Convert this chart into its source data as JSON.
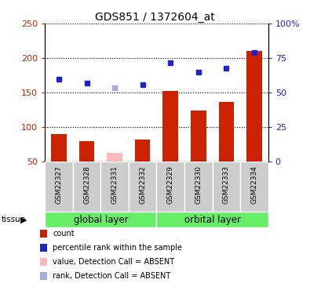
{
  "title": "GDS851 / 1372604_at",
  "samples": [
    "GSM22327",
    "GSM22328",
    "GSM22331",
    "GSM22332",
    "GSM22329",
    "GSM22330",
    "GSM22333",
    "GSM22334"
  ],
  "bar_values": [
    90,
    80,
    63,
    82,
    152,
    124,
    137,
    210
  ],
  "bar_absent": [
    false,
    false,
    true,
    false,
    false,
    false,
    false,
    false
  ],
  "rank_values": [
    170,
    164,
    157,
    161,
    193,
    180,
    185,
    208
  ],
  "rank_absent": [
    false,
    false,
    true,
    false,
    false,
    false,
    false,
    false
  ],
  "groups": [
    {
      "label": "global layer",
      "start": 0,
      "end": 3,
      "color": "#66ee66"
    },
    {
      "label": "orbital layer",
      "start": 4,
      "end": 7,
      "color": "#66ee66"
    }
  ],
  "group_bg_color": "#cccccc",
  "ylim_left": [
    50,
    250
  ],
  "ylim_right": [
    0,
    100
  ],
  "yticks_left": [
    50,
    100,
    150,
    200,
    250
  ],
  "yticks_right": [
    0,
    25,
    50,
    75,
    100
  ],
  "ytick_labels_right": [
    "0",
    "25",
    "50",
    "75",
    "100%"
  ],
  "bar_color_normal": "#cc2200",
  "bar_color_absent": "#ffbbbb",
  "rank_color_normal": "#2222cc",
  "rank_color_absent": "#aaaadd",
  "bar_width": 0.55,
  "grid_color": "#000000",
  "plot_bg_color": "#ffffff",
  "legend_items": [
    {
      "label": "count",
      "color": "#cc2200"
    },
    {
      "label": "percentile rank within the sample",
      "color": "#2222cc"
    },
    {
      "label": "value, Detection Call = ABSENT",
      "color": "#ffbbbb"
    },
    {
      "label": "rank, Detection Call = ABSENT",
      "color": "#aaaadd"
    }
  ]
}
